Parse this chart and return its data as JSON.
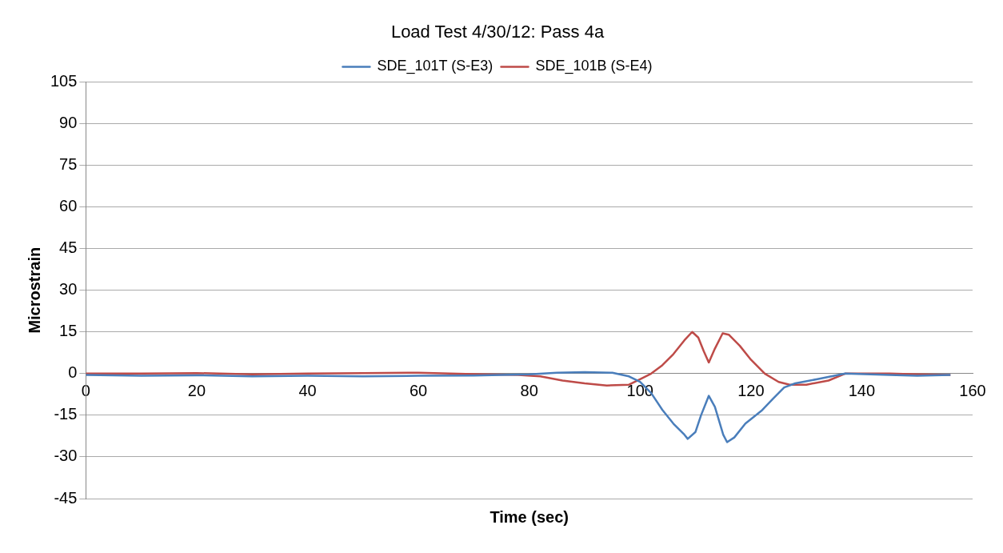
{
  "chart_data": {
    "type": "line",
    "title": "Load Test 4/30/12: Pass 4a",
    "xlabel": "Time (sec)",
    "ylabel": "Microstrain",
    "xlim": [
      0,
      160
    ],
    "xticks": [
      0,
      20,
      40,
      60,
      80,
      100,
      120,
      140,
      160
    ],
    "ylim": [
      -45,
      105
    ],
    "yticks": [
      -45,
      -30,
      -15,
      0,
      15,
      30,
      45,
      60,
      75,
      90,
      105
    ],
    "grid": "y",
    "legend": "top",
    "marker": "none",
    "line_style": "solid",
    "series": [
      {
        "name": "SDE_101T (S-E3)",
        "color": "#4a7ebb",
        "x": [
          0,
          10,
          20,
          30,
          40,
          50,
          60,
          70,
          80,
          85,
          90,
          95,
          98,
          100,
          102,
          104,
          106,
          108,
          108.6,
          110,
          111,
          112.4,
          113.5,
          115,
          115.7,
          117,
          119,
          121.9,
          124,
          126,
          128,
          132,
          137,
          145,
          150,
          156
        ],
        "values": [
          -0.5,
          -0.8,
          -0.6,
          -1,
          -0.8,
          -1,
          -0.8,
          -0.7,
          -0.3,
          0.3,
          0.5,
          0.3,
          -1,
          -3,
          -7,
          -13,
          -18,
          -22,
          -23.5,
          -21,
          -15,
          -8,
          -12,
          -22,
          -24.7,
          -23,
          -18,
          -13.4,
          -9,
          -5,
          -3.5,
          -2,
          0,
          -0.5,
          -0.8,
          -0.5
        ]
      },
      {
        "name": "SDE_101B (S-E4)",
        "color": "#be4b48",
        "x": [
          0,
          10,
          20,
          30,
          40,
          50,
          60,
          70,
          78,
          82,
          86,
          90,
          94,
          98,
          100,
          102,
          104,
          106,
          108,
          109.4,
          110.5,
          111.5,
          112.4,
          113.5,
          114.9,
          116,
          118,
          120,
          122.5,
          125,
          127,
          130,
          134,
          137,
          145,
          150,
          156
        ],
        "values": [
          0,
          0,
          0.2,
          -0.3,
          0,
          0.2,
          0.3,
          -0.2,
          -0.5,
          -1,
          -2.5,
          -3.5,
          -4.3,
          -4,
          -2,
          0,
          3,
          7,
          12,
          15,
          13,
          8,
          4,
          9,
          14.5,
          14,
          10,
          5,
          0,
          -3,
          -4,
          -4,
          -2.5,
          0,
          0,
          -0.3,
          -0.5
        ]
      }
    ]
  }
}
